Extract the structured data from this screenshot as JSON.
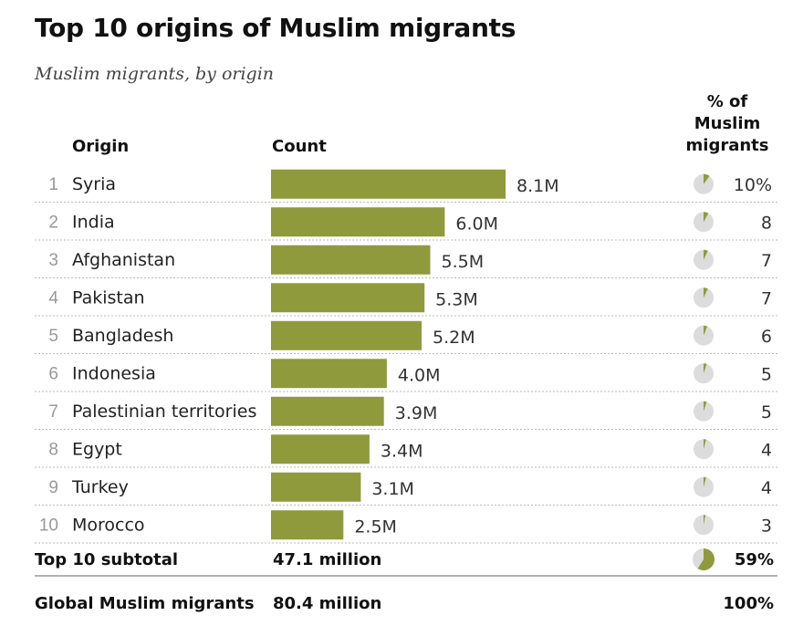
{
  "chart_data": {
    "type": "bar",
    "orientation": "horizontal",
    "title": "Top 10 origins of Muslim migrants",
    "subtitle": "Muslim migrants, by origin",
    "column_headers": {
      "origin": "Origin",
      "count": "Count",
      "percent_line1": "% of",
      "percent_line2": "Muslim",
      "percent_line3": "migrants"
    },
    "rows": [
      {
        "rank": "1",
        "origin": "Syria",
        "value": 8.1,
        "value_label": "8.1M",
        "percent": 10,
        "percent_label": "10%"
      },
      {
        "rank": "2",
        "origin": "India",
        "value": 6.0,
        "value_label": "6.0M",
        "percent": 8,
        "percent_label": "8"
      },
      {
        "rank": "3",
        "origin": "Afghanistan",
        "value": 5.5,
        "value_label": "5.5M",
        "percent": 7,
        "percent_label": "7"
      },
      {
        "rank": "4",
        "origin": "Pakistan",
        "value": 5.3,
        "value_label": "5.3M",
        "percent": 7,
        "percent_label": "7"
      },
      {
        "rank": "5",
        "origin": "Bangladesh",
        "value": 5.2,
        "value_label": "5.2M",
        "percent": 6,
        "percent_label": "6"
      },
      {
        "rank": "6",
        "origin": "Indonesia",
        "value": 4.0,
        "value_label": "4.0M",
        "percent": 5,
        "percent_label": "5"
      },
      {
        "rank": "7",
        "origin": "Palestinian territories",
        "value": 3.9,
        "value_label": "3.9M",
        "percent": 5,
        "percent_label": "5"
      },
      {
        "rank": "8",
        "origin": "Egypt",
        "value": 3.4,
        "value_label": "3.4M",
        "percent": 4,
        "percent_label": "4"
      },
      {
        "rank": "9",
        "origin": "Turkey",
        "value": 3.1,
        "value_label": "3.1M",
        "percent": 4,
        "percent_label": "4"
      },
      {
        "rank": "10",
        "origin": "Morocco",
        "value": 2.5,
        "value_label": "2.5M",
        "percent": 3,
        "percent_label": "3"
      }
    ],
    "subtotal": {
      "label": "Top 10 subtotal",
      "count": "47.1 million",
      "percent": 59,
      "percent_label": "59%"
    },
    "total": {
      "label": "Global Muslim migrants",
      "count": "80.4 million",
      "percent_label": "100%"
    },
    "value_unit": "M",
    "xlim": [
      0,
      8.1
    ],
    "colors": {
      "bar": "#8f9a3c",
      "pie_fill": "#8f9a3c",
      "pie_bg": "#dcdcdc",
      "row_divider": "#bbbbbb",
      "total_rule": "#999999"
    }
  }
}
